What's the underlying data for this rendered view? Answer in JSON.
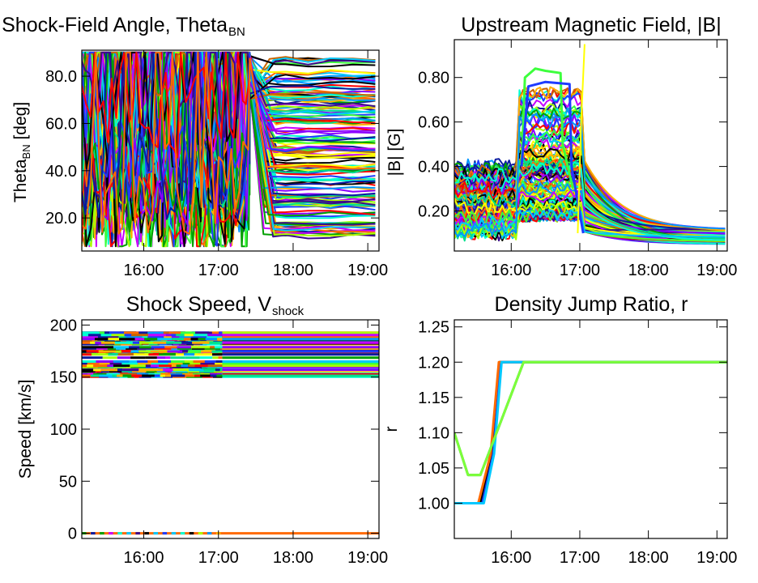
{
  "chart_data": [
    {
      "type": "line",
      "title": "Shock-Field Angle, Theta",
      "title_sub": "BN",
      "ylabel": "Theta",
      "ylabel_sub": "BN",
      "ylabel_tail": " [deg]",
      "xlabel": "",
      "x_unit": "hours UT",
      "xlim": [
        15.17,
        19.15
      ],
      "ylim": [
        6,
        91
      ],
      "xticks": [
        16,
        17,
        18,
        19
      ],
      "xtick_labels": [
        "16:00",
        "17:00",
        "18:00",
        "19:00"
      ],
      "yticks": [
        20,
        40,
        60,
        80
      ],
      "ytick_labels": [
        "20.0",
        "40.0",
        "60.0",
        "80.0"
      ],
      "series_count_approx": 200,
      "series_summary": {
        "before_17_30": "values scattered widely between about 8 and 90 deg, many curves saturating near 90 deg",
        "after_17_45": "values nearly flat, spread between about 12 and 88 deg",
        "min_late": 12,
        "max_late": 88
      }
    },
    {
      "type": "line",
      "title": "Upstream Magnetic Field, |B|",
      "ylabel": "|B| [G]",
      "xlabel": "",
      "x_unit": "hours UT",
      "xlim": [
        15.17,
        19.15
      ],
      "ylim": [
        0.02,
        0.97
      ],
      "xticks": [
        16,
        17,
        18,
        19
      ],
      "xtick_labels": [
        "16:00",
        "17:00",
        "18:00",
        "19:00"
      ],
      "yticks": [
        0.2,
        0.4,
        0.6,
        0.8
      ],
      "ytick_labels": [
        "0.20",
        "0.40",
        "0.60",
        "0.80"
      ],
      "series_count_approx": 200,
      "series_summary": {
        "start_range": [
          0.1,
          0.4
        ],
        "peak_window": [
          16.15,
          17.05
        ],
        "highest_curve_peak": 0.84,
        "second_curve_peak": 0.78,
        "decay_end_range": [
          0.05,
          0.12
        ],
        "spike_near_17_05": 0.95
      }
    },
    {
      "type": "line",
      "title": "Shock Speed, V",
      "title_sub": "shock",
      "ylabel": "Speed [km/s]",
      "xlabel": "",
      "x_unit": "hours UT",
      "xlim": [
        15.17,
        19.15
      ],
      "ylim": [
        -5,
        205
      ],
      "xticks": [
        16,
        17,
        18,
        19
      ],
      "xtick_labels": [
        "16:00",
        "17:00",
        "18:00",
        "19:00"
      ],
      "yticks": [
        0,
        50,
        100,
        150,
        200
      ],
      "ytick_labels": [
        "0",
        "50",
        "100",
        "150",
        "200"
      ],
      "series_count_approx": 200,
      "series_summary": {
        "band_low": 150,
        "band_high": 193,
        "band_behavior": "constant per series, finely segmented color changes before 17:05, uniform after",
        "zero_line": "series at 0 km/s across full range"
      }
    },
    {
      "type": "line",
      "title": "Density Jump Ratio, r",
      "ylabel": "r",
      "xlabel": "",
      "x_unit": "hours UT",
      "xlim": [
        15.17,
        19.15
      ],
      "ylim": [
        0.95,
        1.26
      ],
      "xticks": [
        16,
        17,
        18,
        19
      ],
      "xtick_labels": [
        "16:00",
        "17:00",
        "18:00",
        "19:00"
      ],
      "yticks": [
        1.0,
        1.05,
        1.1,
        1.15,
        1.2,
        1.25
      ],
      "ytick_labels": [
        "1.00",
        "1.05",
        "1.10",
        "1.15",
        "1.20",
        "1.25"
      ],
      "series": [
        {
          "color": "#000000",
          "x": [
            15.17,
            15.55,
            15.72,
            15.83,
            19.15
          ],
          "y": [
            1.0,
            1.0,
            1.07,
            1.2,
            1.2
          ]
        },
        {
          "color": "#1e3cff",
          "x": [
            15.17,
            15.58,
            15.74,
            15.85,
            19.15
          ],
          "y": [
            1.0,
            1.0,
            1.07,
            1.2,
            1.2
          ]
        },
        {
          "color": "#ff6a00",
          "x": [
            15.17,
            15.52,
            15.7,
            15.82,
            19.15
          ],
          "y": [
            1.0,
            1.0,
            1.07,
            1.2,
            1.2
          ]
        },
        {
          "color": "#00c8ff",
          "x": [
            15.17,
            15.6,
            15.75,
            15.86,
            19.15
          ],
          "y": [
            1.0,
            1.0,
            1.07,
            1.2,
            1.2
          ]
        },
        {
          "color": "#1a9c2e",
          "x": [
            15.17,
            15.37,
            15.55,
            16.18,
            19.15
          ],
          "y": [
            1.1,
            1.04,
            1.04,
            1.2,
            1.2
          ]
        },
        {
          "color": "#7cff3a",
          "x": [
            15.17,
            15.37,
            15.55,
            16.18,
            19.15
          ],
          "y": [
            1.1,
            1.04,
            1.04,
            1.2,
            1.2
          ]
        }
      ]
    }
  ],
  "palette": [
    "#000000",
    "#1e3cff",
    "#0a1aa0",
    "#3c0a8c",
    "#ff0000",
    "#ff6a00",
    "#ffb000",
    "#ffff00",
    "#a8ff00",
    "#3cff3c",
    "#00e08c",
    "#00ffd2",
    "#00c8ff",
    "#0096ff",
    "#8c00ff",
    "#c800ff",
    "#00a000",
    "#c86400"
  ]
}
